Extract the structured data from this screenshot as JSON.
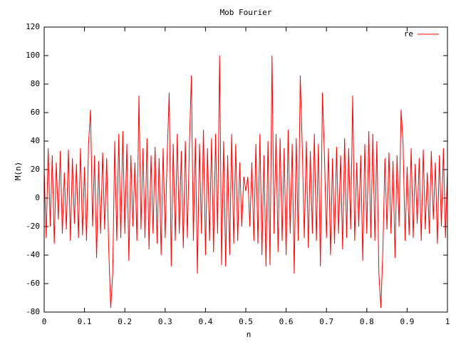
{
  "chart_data": {
    "type": "line",
    "title": "Mob Fourier",
    "x_label": "n",
    "y_label": "M(n)",
    "xlim": [
      0,
      1
    ],
    "ylim": [
      -80,
      120
    ],
    "xticks": [
      0,
      0.1,
      0.2,
      0.3,
      0.4,
      0.5,
      0.6,
      0.7,
      0.8,
      0.9,
      1
    ],
    "yticks": [
      -80,
      -60,
      -40,
      -20,
      0,
      20,
      40,
      60,
      80,
      100,
      120
    ],
    "grid": false,
    "legend": "top-right",
    "x": [
      0,
      0.005,
      0.01,
      0.015,
      0.02,
      0.025,
      0.03,
      0.035,
      0.04,
      0.045,
      0.05,
      0.055,
      0.06,
      0.065,
      0.07,
      0.075,
      0.08,
      0.085,
      0.09,
      0.095,
      0.1,
      0.105,
      0.11,
      0.115,
      0.12,
      0.125,
      0.13,
      0.135,
      0.14,
      0.145,
      0.15,
      0.155,
      0.16,
      0.165,
      0.17,
      0.175,
      0.18,
      0.185,
      0.19,
      0.195,
      0.2,
      0.205,
      0.21,
      0.215,
      0.22,
      0.225,
      0.23,
      0.235,
      0.24,
      0.245,
      0.25,
      0.255,
      0.26,
      0.265,
      0.27,
      0.275,
      0.28,
      0.285,
      0.29,
      0.295,
      0.3,
      0.305,
      0.31,
      0.315,
      0.32,
      0.325,
      0.33,
      0.335,
      0.34,
      0.345,
      0.35,
      0.355,
      0.36,
      0.365,
      0.37,
      0.375,
      0.38,
      0.385,
      0.39,
      0.395,
      0.4,
      0.405,
      0.41,
      0.415,
      0.42,
      0.425,
      0.43,
      0.435,
      0.44,
      0.445,
      0.45,
      0.455,
      0.46,
      0.465,
      0.47,
      0.475,
      0.48,
      0.485,
      0.49,
      0.495,
      0.5,
      0.505,
      0.51,
      0.515,
      0.52,
      0.525,
      0.53,
      0.535,
      0.54,
      0.545,
      0.55,
      0.555,
      0.56,
      0.565,
      0.57,
      0.575,
      0.58,
      0.585,
      0.59,
      0.595,
      0.6,
      0.605,
      0.61,
      0.615,
      0.62,
      0.625,
      0.63,
      0.635,
      0.64,
      0.645,
      0.65,
      0.655,
      0.66,
      0.665,
      0.67,
      0.675,
      0.68,
      0.685,
      0.69,
      0.695,
      0.7,
      0.705,
      0.71,
      0.715,
      0.72,
      0.725,
      0.73,
      0.735,
      0.74,
      0.745,
      0.75,
      0.755,
      0.76,
      0.765,
      0.77,
      0.775,
      0.78,
      0.785,
      0.79,
      0.795,
      0.8,
      0.805,
      0.81,
      0.815,
      0.82,
      0.825,
      0.83,
      0.835,
      0.84,
      0.845,
      0.85,
      0.855,
      0.86,
      0.865,
      0.87,
      0.875,
      0.88,
      0.885,
      0.89,
      0.895,
      0.9,
      0.905,
      0.91,
      0.915,
      0.92,
      0.925,
      0.93,
      0.935,
      0.94,
      0.945,
      0.95,
      0.955,
      0.96,
      0.965,
      0.97,
      0.975,
      0.98,
      0.985,
      0.99,
      0.995,
      1
    ],
    "series": [
      {
        "name": "re",
        "color": "#ff0000",
        "values": [
          20,
          -28,
          35,
          -20,
          30,
          -32,
          25,
          -15,
          33,
          -25,
          18,
          -22,
          34,
          -30,
          28,
          -18,
          24,
          -28,
          35,
          -26,
          22,
          -30,
          38,
          62,
          -20,
          30,
          -42,
          26,
          -25,
          32,
          -22,
          28,
          -35,
          -77,
          -53,
          40,
          -30,
          45,
          -28,
          47,
          -25,
          38,
          -44,
          30,
          -20,
          25,
          -30,
          72,
          -22,
          35,
          -28,
          42,
          -36,
          30,
          -25,
          36,
          -32,
          28,
          -40,
          35,
          -28,
          30,
          74,
          -48,
          38,
          -30,
          45,
          -25,
          33,
          -35,
          40,
          -28,
          36,
          86,
          -30,
          42,
          -53,
          38,
          -25,
          48,
          -40,
          35,
          -30,
          42,
          -38,
          45,
          -25,
          100,
          -47,
          40,
          -48,
          30,
          -40,
          45,
          -32,
          38,
          -30,
          25,
          -20,
          15,
          5,
          15,
          -20,
          25,
          -30,
          38,
          -32,
          45,
          -40,
          30,
          -48,
          40,
          -47,
          100,
          -25,
          45,
          -38,
          42,
          -30,
          35,
          -40,
          48,
          -25,
          38,
          -53,
          42,
          -30,
          86,
          36,
          -28,
          40,
          -35,
          33,
          -25,
          45,
          -30,
          38,
          -48,
          74,
          30,
          -28,
          35,
          -40,
          28,
          -32,
          36,
          -25,
          30,
          -36,
          42,
          -28,
          35,
          -22,
          72,
          -30,
          25,
          -20,
          30,
          -44,
          38,
          -25,
          47,
          -28,
          45,
          -30,
          40,
          -53,
          -77,
          -35,
          28,
          -22,
          32,
          -25,
          26,
          -42,
          30,
          -20,
          62,
          38,
          -30,
          22,
          -26,
          35,
          -28,
          24,
          -18,
          28,
          -30,
          34,
          -22,
          18,
          -25,
          33,
          -15,
          25,
          -32,
          30,
          -20,
          35,
          -28,
          20
        ]
      }
    ]
  }
}
